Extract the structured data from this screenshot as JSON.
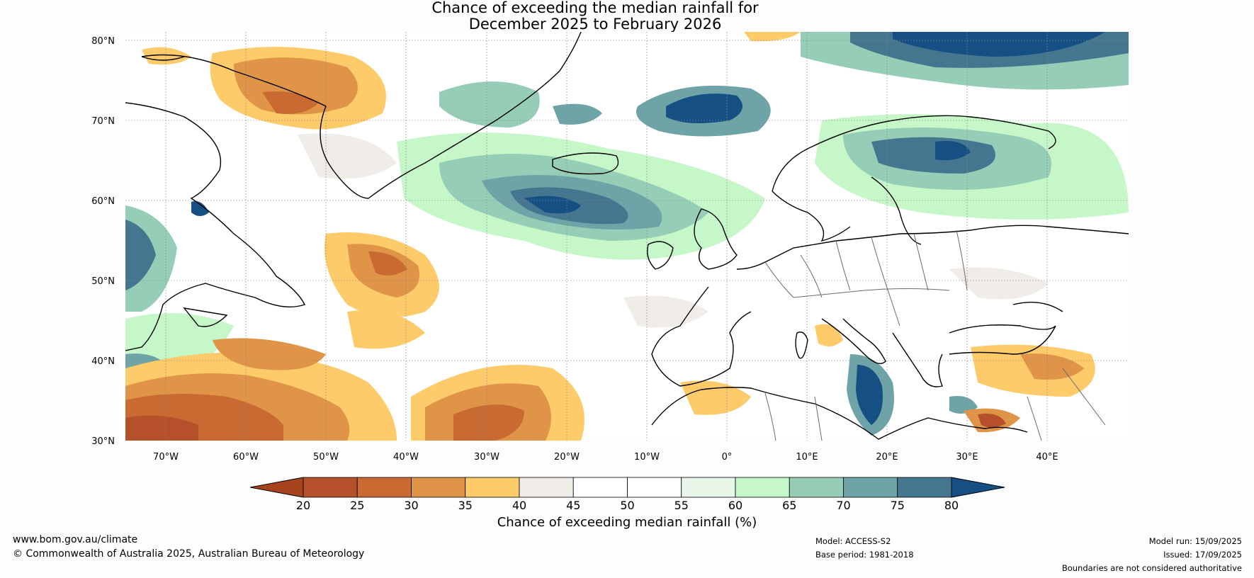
{
  "title": {
    "line1": "Chance of exceeding the median rainfall for",
    "line2": "December 2025 to February 2026"
  },
  "map": {
    "lat_labels": [
      "80°N",
      "70°N",
      "60°N",
      "50°N",
      "40°N",
      "30°N"
    ],
    "lon_labels": [
      "70°W",
      "60°W",
      "50°W",
      "40°W",
      "30°W",
      "20°W",
      "10°W",
      "0°",
      "10°E",
      "20°E",
      "30°E",
      "40°E"
    ],
    "lat_range": [
      30,
      80
    ],
    "lon_range": [
      -75,
      50
    ]
  },
  "colorbar": {
    "ticks": [
      "20",
      "25",
      "30",
      "35",
      "40",
      "45",
      "50",
      "55",
      "60",
      "65",
      "70",
      "75",
      "80"
    ],
    "colors": [
      "#a6441e",
      "#b5502a",
      "#c96a33",
      "#df9447",
      "#fdcb6a",
      "#f0ece7",
      "#ffffff",
      "#ffffff",
      "#e8f5e9",
      "#c6f7c9",
      "#96cdb7",
      "#6ea4a7",
      "#44778f",
      "#154f83"
    ],
    "label": "Chance of exceeding median rainfall (%)"
  },
  "footer": {
    "website": "www.bom.gov.au/climate",
    "copyright": "© Commonwealth of Australia 2025, Australian Bureau of Meteorology",
    "model": "Model: ACCESS-S2",
    "base_period": "Base period: 1981-2018",
    "model_run": "Model run: 15/09/2025",
    "issued": "Issued: 17/09/2025",
    "disclaimer": "Boundaries are not considered authoritative"
  }
}
